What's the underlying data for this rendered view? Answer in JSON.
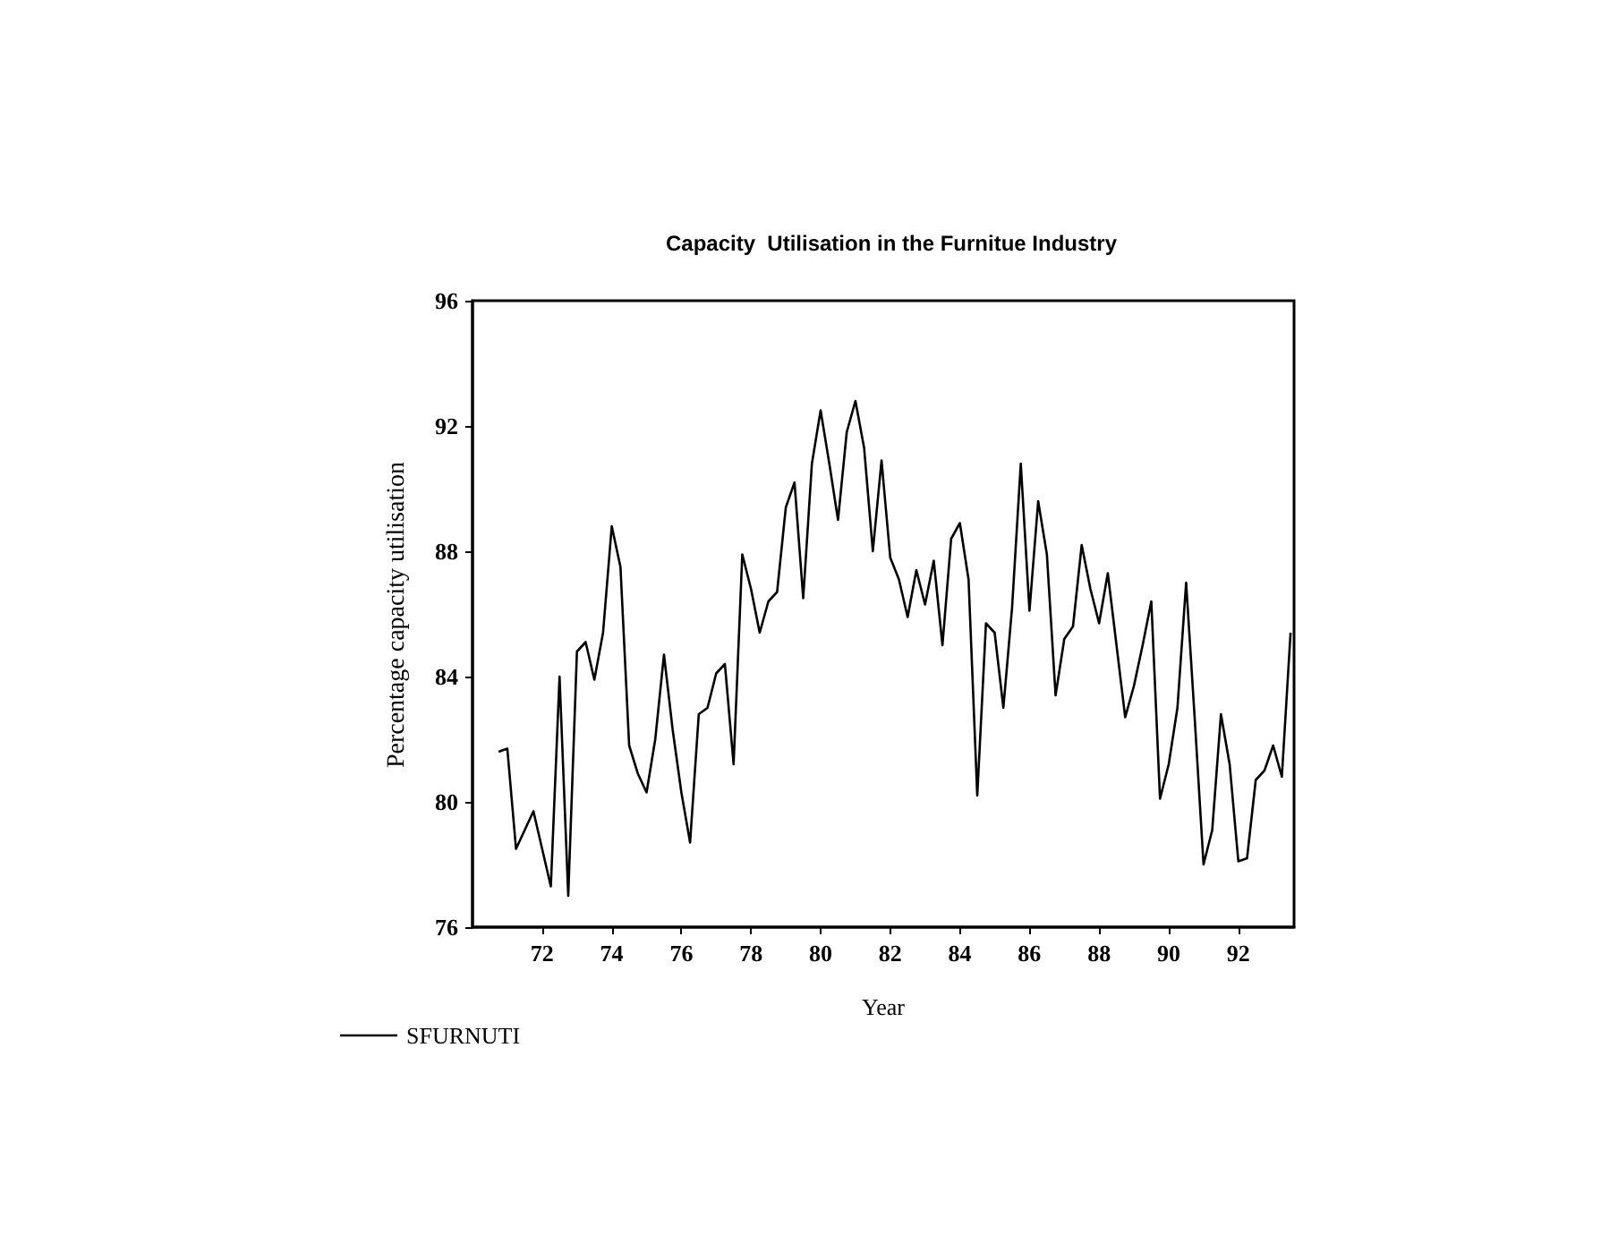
{
  "chart_data": {
    "type": "line",
    "title": "Capacity  Utilisation in the Furnitue Industry",
    "xlabel": "Year",
    "ylabel": "Percentage capacity utilisation",
    "x": [
      70.75,
      71.0,
      71.25,
      71.5,
      71.75,
      72.0,
      72.25,
      72.5,
      72.75,
      73.0,
      73.25,
      73.5,
      73.75,
      74.0,
      74.25,
      74.5,
      74.75,
      75.0,
      75.25,
      75.5,
      75.75,
      76.0,
      76.25,
      76.5,
      76.75,
      77.0,
      77.25,
      77.5,
      77.75,
      78.0,
      78.25,
      78.5,
      78.75,
      79.0,
      79.25,
      79.5,
      79.75,
      80.0,
      80.25,
      80.5,
      80.75,
      81.0,
      81.25,
      81.5,
      81.75,
      82.0,
      82.25,
      82.5,
      82.75,
      83.0,
      83.25,
      83.5,
      83.75,
      84.0,
      84.25,
      84.5,
      84.75,
      85.0,
      85.25,
      85.5,
      85.75,
      86.0,
      86.25,
      86.5,
      86.75,
      87.0,
      87.25,
      87.5,
      87.75,
      88.0,
      88.25,
      88.5,
      88.75,
      89.0,
      89.25,
      89.5,
      89.75,
      90.0,
      90.25,
      90.5,
      90.75,
      91.0,
      91.25,
      91.5,
      91.75,
      92.0,
      92.25,
      92.5,
      92.75,
      93.0,
      93.25,
      93.5
    ],
    "series": [
      {
        "name": "SFURNUTI",
        "color": "#000000",
        "values": [
          81.6,
          81.7,
          78.5,
          79.1,
          79.7,
          78.5,
          77.3,
          84.0,
          77.0,
          84.8,
          85.1,
          83.9,
          85.4,
          88.8,
          87.5,
          81.8,
          80.9,
          80.3,
          82.0,
          84.7,
          82.3,
          80.3,
          78.7,
          82.8,
          83.0,
          84.1,
          84.4,
          81.2,
          87.9,
          86.8,
          85.4,
          86.4,
          86.7,
          89.4,
          90.2,
          86.5,
          90.8,
          92.5,
          90.8,
          89.0,
          91.8,
          92.8,
          91.3,
          88.0,
          90.9,
          87.8,
          87.1,
          85.9,
          87.4,
          86.3,
          87.7,
          85.0,
          88.4,
          88.9,
          87.1,
          80.2,
          85.7,
          85.4,
          83.0,
          86.2,
          90.8,
          86.1,
          89.6,
          87.9,
          83.4,
          85.2,
          85.6,
          88.2,
          86.8,
          85.7,
          87.3,
          85.0,
          82.7,
          83.7,
          85.0,
          86.4,
          80.1,
          81.2,
          83.0,
          87.0,
          82.6,
          78.0,
          79.1,
          82.8,
          81.2,
          78.1,
          78.2,
          80.7,
          81.0,
          81.8,
          80.8,
          85.4
        ]
      }
    ],
    "xlim": [
      70,
      93.6
    ],
    "xticks": [
      72,
      74,
      76,
      78,
      80,
      82,
      84,
      86,
      88,
      90,
      92
    ],
    "ylim": [
      76,
      96
    ],
    "yticks": [
      76,
      80,
      84,
      88,
      92,
      96
    ],
    "grid": false,
    "legend": "bottom left",
    "marker": "none",
    "line_style": "solid"
  }
}
